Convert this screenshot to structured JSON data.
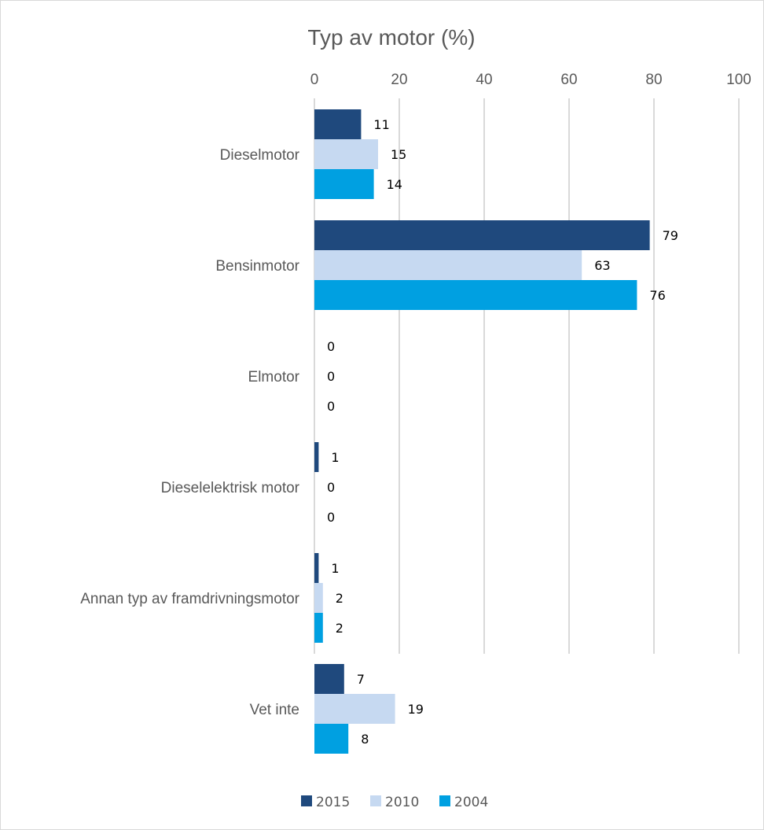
{
  "chart_data": {
    "type": "bar",
    "orientation": "horizontal",
    "title": "Typ av motor (%)",
    "xlabel": "",
    "ylabel": "",
    "xlim": [
      0,
      100
    ],
    "x_ticks": [
      0,
      20,
      40,
      60,
      80,
      100
    ],
    "x_axis_position": "top",
    "grid": true,
    "legend_position": "bottom",
    "categories": [
      "Dieselmotor",
      "Bensinmotor",
      "Elmotor",
      "Dieselelektrisk motor",
      "Annan typ av framdrivningsmotor",
      "Vet inte"
    ],
    "series": [
      {
        "name": "2015",
        "color": "#1f497d",
        "values": [
          11,
          79,
          0,
          1,
          1,
          7
        ]
      },
      {
        "name": "2010",
        "color": "#c6d9f1",
        "values": [
          15,
          63,
          0,
          0,
          2,
          19
        ]
      },
      {
        "name": "2004",
        "color": "#00a0e1",
        "values": [
          14,
          76,
          0,
          0,
          2,
          8
        ]
      }
    ]
  }
}
